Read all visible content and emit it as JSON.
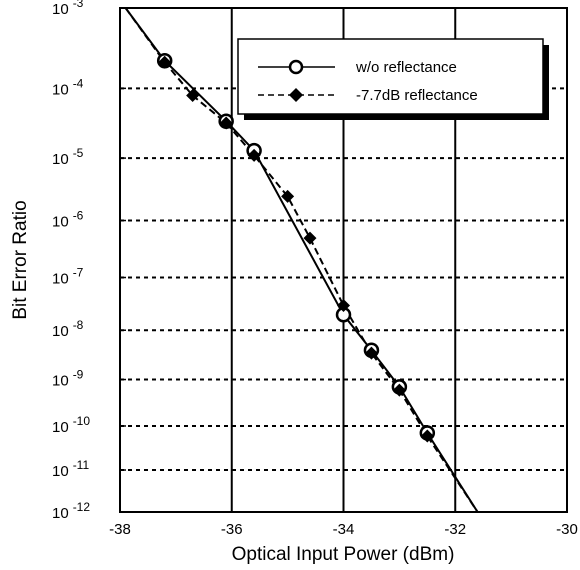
{
  "chart_data": {
    "type": "line",
    "xlabel": "Optical Input Power (dBm)",
    "ylabel": "Bit Error Ratio",
    "xlim": [
      -38,
      -30
    ],
    "x_ticks": [
      {
        "value": -38,
        "label": "-38"
      },
      {
        "value": -36,
        "label": "-36"
      },
      {
        "value": -34,
        "label": "-34"
      },
      {
        "value": -32,
        "label": "-32"
      },
      {
        "value": -30,
        "label": "-30"
      }
    ],
    "y_scale": "erfc-q (BER probability scale)",
    "y_ticks": [
      {
        "value": 0.001,
        "base": "10",
        "exp": "-3"
      },
      {
        "value": 0.0001,
        "base": "10",
        "exp": "-4"
      },
      {
        "value": 1e-05,
        "base": "10",
        "exp": "-5"
      },
      {
        "value": 1e-06,
        "base": "10",
        "exp": "-6"
      },
      {
        "value": 1e-07,
        "base": "10",
        "exp": "-7"
      },
      {
        "value": 1e-08,
        "base": "10",
        "exp": "-8"
      },
      {
        "value": 1e-09,
        "base": "10",
        "exp": "-9"
      },
      {
        "value": 1e-10,
        "base": "10",
        "exp": "-10"
      },
      {
        "value": 1e-11,
        "base": "10",
        "exp": "-11"
      },
      {
        "value": 1e-12,
        "base": "10",
        "exp": "-12"
      }
    ],
    "grid": {
      "vertical": "solid",
      "horizontal": "dashed"
    },
    "legend_position": "top-right",
    "series": [
      {
        "name": "w/o reflectance",
        "marker": "open-circle",
        "line": "solid",
        "points": [
          {
            "x": -37.2,
            "y": 0.00023
          },
          {
            "x": -36.1,
            "y": 3.5e-05
          },
          {
            "x": -35.6,
            "y": 1.3e-05
          },
          {
            "x": -34.0,
            "y": 2e-08
          },
          {
            "x": -33.5,
            "y": 4e-09
          },
          {
            "x": -33.0,
            "y": 7e-10
          },
          {
            "x": -32.5,
            "y": 7e-11
          }
        ]
      },
      {
        "name": "-7.7dB reflectance",
        "marker": "filled-diamond",
        "line": "dashed",
        "points": [
          {
            "x": -37.2,
            "y": 0.00022
          },
          {
            "x": -36.7,
            "y": 8e-05
          },
          {
            "x": -36.1,
            "y": 3.3e-05
          },
          {
            "x": -35.6,
            "y": 1.1e-05
          },
          {
            "x": -35.0,
            "y": 2.5e-06
          },
          {
            "x": -34.6,
            "y": 5e-07
          },
          {
            "x": -34.0,
            "y": 3e-08
          },
          {
            "x": -33.5,
            "y": 3.5e-09
          },
          {
            "x": -33.0,
            "y": 6e-10
          },
          {
            "x": -32.5,
            "y": 6e-11
          }
        ]
      }
    ],
    "fit_line": {
      "x_start": -37.9,
      "y_start": 0.001,
      "x_end": -31.6,
      "y_end": 1e-12
    }
  }
}
